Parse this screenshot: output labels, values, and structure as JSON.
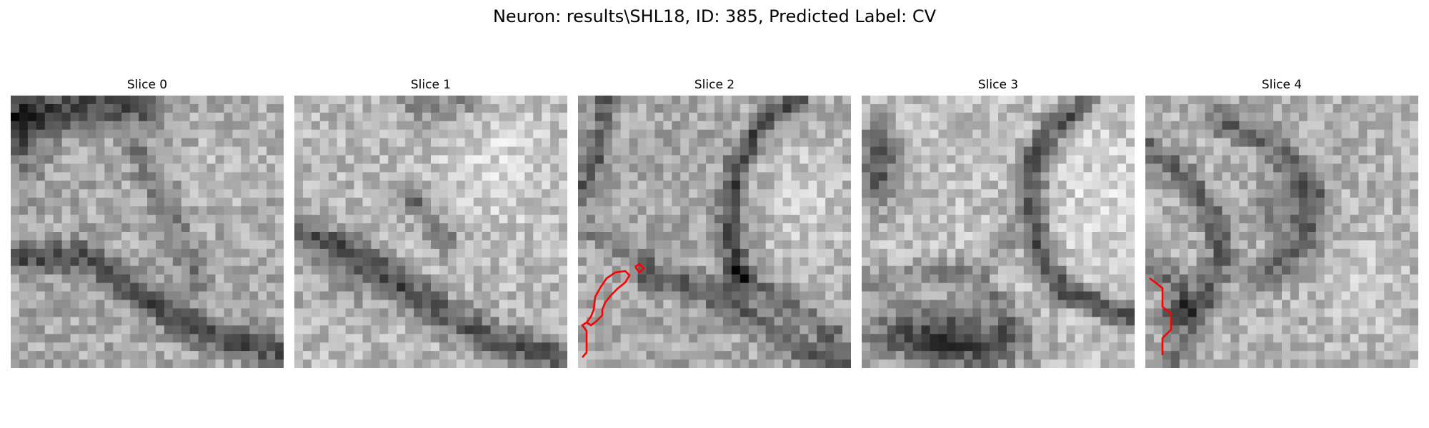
{
  "figure": {
    "title": "Neuron: results\\SHL18, ID: 385, Predicted Label: CV"
  },
  "slices": [
    {
      "title": "Slice 0",
      "seed": 11,
      "dark_regions": "upper-left band, diagonal dark band lower-right",
      "overlay": false
    },
    {
      "title": "Slice 1",
      "seed": 23,
      "dark_regions": "diagonal dark band lower half, bright upper right",
      "overlay": false
    },
    {
      "title": "Slice 2",
      "seed": 37,
      "dark_regions": "dark curved membranes, bright right region",
      "overlay": true
    },
    {
      "title": "Slice 3",
      "seed": 41,
      "dark_regions": "dark curved membrane right, dark blob lower-left",
      "overlay": false
    },
    {
      "title": "Slice 4",
      "seed": 53,
      "dark_regions": "dark arcs left and upper center",
      "overlay": true
    }
  ],
  "colors": {
    "contour": "#ff0000",
    "background": "#ffffff"
  }
}
